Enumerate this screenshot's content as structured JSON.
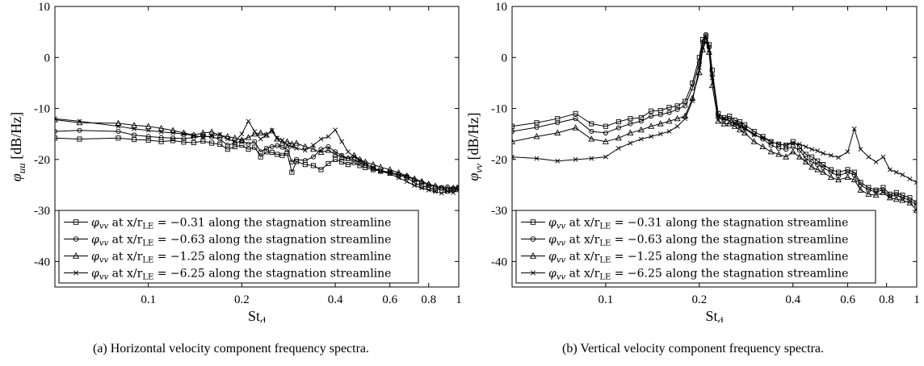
{
  "chart_data": [
    {
      "type": "line",
      "caption": "(a) Horizontal velocity component frequency spectra.",
      "ylabel_symbol": "φ",
      "ylabel_sub": "uu",
      "ylabel_unit": "[dB/Hz]",
      "xlabel_main": "St",
      "xlabel_sub": "d",
      "xscale": "log",
      "xlim": [
        0.05,
        1
      ],
      "ylim": [
        -45,
        10
      ],
      "xticks": [
        0.1,
        0.2,
        0.4,
        0.6,
        0.8,
        1
      ],
      "xtick_labels": [
        "0.1",
        "0.2",
        "0.4",
        "0.6",
        "0.8",
        "1"
      ],
      "yticks": [
        -40,
        -30,
        -20,
        -10,
        0,
        10
      ],
      "ytick_labels": [
        "-40",
        "-30",
        "-20",
        "-10",
        "0",
        "10"
      ],
      "legend": {
        "placement": "lower-left"
      },
      "series": [
        {
          "marker": "square",
          "sym": "φ",
          "sub": "vv",
          "mid": " at x/r",
          "sub2": "LE",
          "rest": " = −0.31 along the stagnation streamline",
          "x": [
            0.05,
            0.06,
            0.08,
            0.09,
            0.1,
            0.11,
            0.12,
            0.13,
            0.14,
            0.15,
            0.16,
            0.17,
            0.18,
            0.19,
            0.2,
            0.21,
            0.22,
            0.23,
            0.24,
            0.25,
            0.26,
            0.27,
            0.28,
            0.29,
            0.3,
            0.32,
            0.34,
            0.36,
            0.38,
            0.4,
            0.42,
            0.44,
            0.46,
            0.48,
            0.5,
            0.53,
            0.56,
            0.6,
            0.64,
            0.68,
            0.72,
            0.76,
            0.8,
            0.84,
            0.88,
            0.92,
            0.96,
            1.0
          ],
          "y": [
            -15.8,
            -16.0,
            -15.8,
            -16.1,
            -16.2,
            -16.5,
            -16.3,
            -16.6,
            -16.7,
            -16.4,
            -16.8,
            -17.0,
            -18.0,
            -17.5,
            -17.2,
            -18.0,
            -17.6,
            -19.5,
            -18.5,
            -18.6,
            -19.0,
            -19.2,
            -18.8,
            -22.5,
            -20.4,
            -21.0,
            -21.2,
            -22.0,
            -20.8,
            -20.0,
            -20.5,
            -21.0,
            -20.6,
            -21.2,
            -21.6,
            -22.0,
            -22.3,
            -22.7,
            -23.1,
            -23.5,
            -24.6,
            -25.2,
            -25.5,
            -26.0,
            -25.6,
            -26.2,
            -25.8,
            -25.5
          ]
        },
        {
          "marker": "circle",
          "sym": "φ",
          "sub": "vv",
          "mid": " at x/r",
          "sub2": "LE",
          "rest": " = −0.63 along the stagnation streamline",
          "x": [
            0.05,
            0.06,
            0.08,
            0.09,
            0.1,
            0.11,
            0.12,
            0.13,
            0.14,
            0.15,
            0.16,
            0.17,
            0.18,
            0.19,
            0.2,
            0.21,
            0.22,
            0.23,
            0.24,
            0.25,
            0.26,
            0.27,
            0.28,
            0.29,
            0.3,
            0.32,
            0.34,
            0.36,
            0.38,
            0.4,
            0.42,
            0.44,
            0.46,
            0.48,
            0.5,
            0.53,
            0.56,
            0.6,
            0.64,
            0.68,
            0.72,
            0.76,
            0.8,
            0.84,
            0.88,
            0.92,
            0.96,
            1.0
          ],
          "y": [
            -14.5,
            -14.3,
            -14.5,
            -15.2,
            -15.5,
            -15.7,
            -15.8,
            -15.9,
            -15.7,
            -15.4,
            -15.6,
            -16.0,
            -17.2,
            -16.8,
            -16.3,
            -17.0,
            -16.5,
            -18.5,
            -17.8,
            -17.5,
            -17.3,
            -17.6,
            -18.0,
            -20.5,
            -20.0,
            -20.2,
            -19.5,
            -18.0,
            -17.5,
            -18.5,
            -19.2,
            -19.8,
            -20.0,
            -20.6,
            -21.2,
            -21.8,
            -22.2,
            -22.5,
            -22.9,
            -23.3,
            -24.0,
            -24.5,
            -25.0,
            -25.3,
            -25.6,
            -25.4,
            -25.7,
            -25.6
          ]
        },
        {
          "marker": "triangle",
          "sym": "φ",
          "sub": "vv",
          "mid": " at x/r",
          "sub2": "LE",
          "rest": " = −1.25 along the stagnation streamline",
          "x": [
            0.05,
            0.06,
            0.08,
            0.09,
            0.1,
            0.11,
            0.12,
            0.13,
            0.14,
            0.15,
            0.16,
            0.17,
            0.18,
            0.19,
            0.2,
            0.21,
            0.22,
            0.23,
            0.24,
            0.25,
            0.26,
            0.27,
            0.28,
            0.29,
            0.3,
            0.32,
            0.34,
            0.36,
            0.38,
            0.4,
            0.42,
            0.44,
            0.46,
            0.48,
            0.5,
            0.53,
            0.56,
            0.6,
            0.64,
            0.68,
            0.72,
            0.76,
            0.8,
            0.84,
            0.88,
            0.92,
            0.96,
            1.0
          ],
          "y": [
            -12.2,
            -12.8,
            -12.9,
            -13.3,
            -13.5,
            -13.9,
            -14.3,
            -14.8,
            -15.2,
            -14.8,
            -14.6,
            -15.3,
            -15.5,
            -15.8,
            -16.2,
            -15.7,
            -15.0,
            -14.8,
            -15.2,
            -14.4,
            -16.0,
            -16.8,
            -16.5,
            -17.0,
            -16.8,
            -17.5,
            -18.0,
            -18.6,
            -18.2,
            -19.0,
            -19.5,
            -19.8,
            -19.2,
            -20.0,
            -20.5,
            -21.0,
            -21.5,
            -22.0,
            -22.6,
            -23.2,
            -23.8,
            -24.3,
            -24.8,
            -25.2,
            -25.6,
            -25.8,
            -25.6,
            -25.5
          ]
        },
        {
          "marker": "cross",
          "sym": "φ",
          "sub": "vv",
          "mid": " at x/r",
          "sub2": "LE",
          "rest": " = −6.25 along the stagnation streamline",
          "x": [
            0.05,
            0.06,
            0.08,
            0.09,
            0.1,
            0.11,
            0.12,
            0.13,
            0.14,
            0.15,
            0.16,
            0.17,
            0.18,
            0.19,
            0.2,
            0.21,
            0.22,
            0.23,
            0.24,
            0.25,
            0.26,
            0.27,
            0.28,
            0.29,
            0.3,
            0.32,
            0.34,
            0.36,
            0.38,
            0.4,
            0.42,
            0.44,
            0.46,
            0.48,
            0.5,
            0.53,
            0.56,
            0.6,
            0.64,
            0.68,
            0.72,
            0.76,
            0.8,
            0.84,
            0.88,
            0.92,
            0.96,
            1.0
          ],
          "y": [
            -12.0,
            -12.5,
            -13.5,
            -14.0,
            -14.3,
            -14.6,
            -14.8,
            -15.0,
            -15.3,
            -15.6,
            -15.4,
            -15.1,
            -16.0,
            -16.5,
            -15.0,
            -12.5,
            -14.5,
            -16.0,
            -15.2,
            -14.3,
            -15.8,
            -16.2,
            -17.2,
            -17.5,
            -17.8,
            -18.2,
            -17.2,
            -16.0,
            -15.5,
            -14.2,
            -16.5,
            -18.5,
            -19.5,
            -20.2,
            -20.8,
            -21.6,
            -22.3,
            -22.8,
            -23.6,
            -24.3,
            -25.1,
            -25.6,
            -26.0,
            -26.3,
            -26.6,
            -26.2,
            -26.5,
            -26.0
          ]
        }
      ]
    },
    {
      "type": "line",
      "caption": "(b) Vertical velocity component frequency spectra.",
      "ylabel_symbol": "φ",
      "ylabel_sub": "vv",
      "ylabel_unit": "[dB/Hz]",
      "xlabel_main": "St",
      "xlabel_sub": "d",
      "xscale": "log",
      "xlim": [
        0.05,
        1
      ],
      "ylim": [
        -45,
        10
      ],
      "xticks": [
        0.1,
        0.2,
        0.4,
        0.6,
        0.8,
        1
      ],
      "xtick_labels": [
        "0.1",
        "0.2",
        "0.4",
        "0.6",
        "0.8",
        "1"
      ],
      "yticks": [
        -40,
        -30,
        -20,
        -10,
        0,
        10
      ],
      "ytick_labels": [
        "-40",
        "-30",
        "-20",
        "-10",
        "0",
        "10"
      ],
      "legend": {
        "placement": "lower-left"
      },
      "series": [
        {
          "marker": "square",
          "sym": "φ",
          "sub": "vv",
          "mid": " at x/r",
          "sub2": "LE",
          "rest": " = −0.31 along the stagnation streamline",
          "x": [
            0.05,
            0.06,
            0.07,
            0.08,
            0.09,
            0.1,
            0.11,
            0.12,
            0.13,
            0.14,
            0.15,
            0.16,
            0.17,
            0.18,
            0.19,
            0.2,
            0.205,
            0.21,
            0.215,
            0.22,
            0.23,
            0.24,
            0.25,
            0.26,
            0.27,
            0.28,
            0.3,
            0.32,
            0.34,
            0.36,
            0.38,
            0.4,
            0.42,
            0.44,
            0.46,
            0.48,
            0.5,
            0.53,
            0.56,
            0.6,
            0.63,
            0.66,
            0.7,
            0.74,
            0.78,
            0.82,
            0.86,
            0.9,
            0.95,
            1.0
          ],
          "y": [
            -13.5,
            -12.8,
            -12.0,
            -11.0,
            -13.0,
            -13.5,
            -12.6,
            -12.0,
            -11.8,
            -10.5,
            -10.4,
            -9.8,
            -9.5,
            -8.6,
            -5.0,
            0.0,
            3.5,
            4.2,
            2.5,
            -2.5,
            -11.0,
            -11.8,
            -11.5,
            -12.3,
            -12.6,
            -13.2,
            -14.5,
            -15.5,
            -16.5,
            -17.0,
            -17.2,
            -16.5,
            -17.5,
            -19.0,
            -19.5,
            -20.3,
            -21.0,
            -22.0,
            -22.5,
            -22.0,
            -22.5,
            -24.5,
            -25.5,
            -26.0,
            -25.5,
            -26.8,
            -26.5,
            -27.0,
            -27.5,
            -28.5
          ]
        },
        {
          "marker": "circle",
          "sym": "φ",
          "sub": "vv",
          "mid": " at x/r",
          "sub2": "LE",
          "rest": " = −0.63 along the stagnation streamline",
          "x": [
            0.05,
            0.06,
            0.07,
            0.08,
            0.09,
            0.1,
            0.11,
            0.12,
            0.13,
            0.14,
            0.15,
            0.16,
            0.17,
            0.18,
            0.19,
            0.2,
            0.205,
            0.21,
            0.215,
            0.22,
            0.23,
            0.24,
            0.25,
            0.26,
            0.27,
            0.28,
            0.3,
            0.32,
            0.34,
            0.36,
            0.38,
            0.4,
            0.42,
            0.44,
            0.46,
            0.48,
            0.5,
            0.53,
            0.56,
            0.6,
            0.63,
            0.66,
            0.7,
            0.74,
            0.78,
            0.82,
            0.86,
            0.9,
            0.95,
            1.0
          ],
          "y": [
            -14.5,
            -13.7,
            -12.8,
            -12.0,
            -14.5,
            -14.8,
            -13.8,
            -13.0,
            -12.5,
            -11.5,
            -11.2,
            -10.8,
            -10.2,
            -9.5,
            -6.0,
            -1.0,
            3.0,
            4.5,
            2.0,
            -3.5,
            -11.8,
            -12.3,
            -12.0,
            -12.8,
            -13.2,
            -13.8,
            -15.0,
            -16.0,
            -17.2,
            -17.8,
            -18.0,
            -17.5,
            -18.2,
            -19.8,
            -20.5,
            -21.0,
            -21.6,
            -22.5,
            -23.2,
            -22.5,
            -23.0,
            -25.0,
            -26.0,
            -26.3,
            -26.0,
            -27.2,
            -27.0,
            -27.5,
            -28.0,
            -29.0
          ]
        },
        {
          "marker": "triangle",
          "sym": "φ",
          "sub": "vv",
          "mid": " at x/r",
          "sub2": "LE",
          "rest": " = −1.25 along the stagnation streamline",
          "x": [
            0.05,
            0.06,
            0.07,
            0.08,
            0.09,
            0.1,
            0.11,
            0.12,
            0.13,
            0.14,
            0.15,
            0.16,
            0.17,
            0.18,
            0.19,
            0.2,
            0.205,
            0.21,
            0.215,
            0.22,
            0.23,
            0.24,
            0.25,
            0.26,
            0.27,
            0.28,
            0.3,
            0.32,
            0.34,
            0.36,
            0.38,
            0.4,
            0.42,
            0.44,
            0.46,
            0.48,
            0.5,
            0.53,
            0.56,
            0.6,
            0.63,
            0.66,
            0.7,
            0.74,
            0.78,
            0.82,
            0.86,
            0.9,
            0.95,
            1.0
          ],
          "y": [
            -16.5,
            -15.5,
            -14.8,
            -13.8,
            -16.0,
            -16.5,
            -15.8,
            -14.8,
            -14.2,
            -13.5,
            -13.0,
            -12.5,
            -12.0,
            -11.5,
            -8.0,
            -3.0,
            1.5,
            3.2,
            1.0,
            -5.5,
            -12.5,
            -13.0,
            -13.0,
            -13.5,
            -14.2,
            -14.8,
            -16.5,
            -17.5,
            -18.5,
            -19.0,
            -19.5,
            -18.5,
            -19.5,
            -20.5,
            -21.5,
            -22.0,
            -22.5,
            -23.5,
            -24.0,
            -23.5,
            -24.0,
            -26.0,
            -26.8,
            -27.0,
            -26.5,
            -27.5,
            -27.8,
            -28.0,
            -28.5,
            -30.0
          ]
        },
        {
          "marker": "cross",
          "sym": "φ",
          "sub": "vv",
          "mid": " at x/r",
          "sub2": "LE",
          "rest": " = −6.25 along the stagnation streamline",
          "x": [
            0.05,
            0.06,
            0.07,
            0.08,
            0.09,
            0.1,
            0.11,
            0.12,
            0.13,
            0.14,
            0.15,
            0.16,
            0.17,
            0.18,
            0.19,
            0.2,
            0.205,
            0.21,
            0.215,
            0.22,
            0.23,
            0.24,
            0.25,
            0.26,
            0.27,
            0.28,
            0.3,
            0.32,
            0.34,
            0.36,
            0.38,
            0.4,
            0.42,
            0.44,
            0.46,
            0.48,
            0.5,
            0.53,
            0.56,
            0.6,
            0.63,
            0.66,
            0.7,
            0.74,
            0.78,
            0.82,
            0.86,
            0.9,
            0.95,
            1.0
          ],
          "y": [
            -19.5,
            -19.8,
            -20.3,
            -20.0,
            -19.8,
            -19.5,
            -17.8,
            -16.8,
            -16.0,
            -15.5,
            -15.0,
            -14.5,
            -13.5,
            -12.0,
            -8.5,
            -2.0,
            2.0,
            4.0,
            1.5,
            -4.0,
            -11.5,
            -12.0,
            -12.5,
            -13.0,
            -13.5,
            -14.0,
            -15.2,
            -15.8,
            -16.5,
            -17.0,
            -17.2,
            -16.8,
            -17.0,
            -17.5,
            -18.0,
            -18.3,
            -18.8,
            -19.2,
            -19.6,
            -18.5,
            -14.0,
            -18.0,
            -19.5,
            -20.5,
            -19.5,
            -22.0,
            -22.5,
            -23.0,
            -23.8,
            -24.5
          ]
        }
      ]
    }
  ]
}
